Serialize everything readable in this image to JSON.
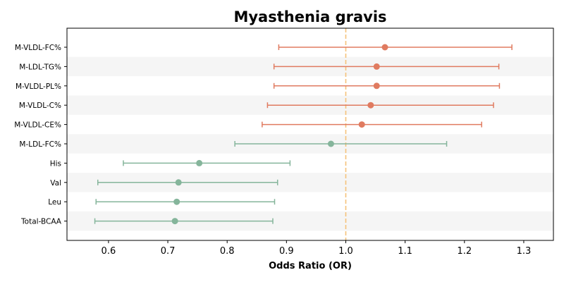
{
  "chart_data": {
    "type": "forest",
    "title": "Myasthenia gravis",
    "xlabel": "Odds Ratio (OR)",
    "ylabel": "",
    "xlim": [
      0.53,
      1.35
    ],
    "xticks": [
      "0.6",
      "0.7",
      "0.8",
      "0.9",
      "1.0",
      "1.1",
      "1.2",
      "1.3"
    ],
    "reference_line": 1.0,
    "reference_color": "#f5c27a",
    "stripe_color": "#f5f5f5",
    "categories": [
      "M-VLDL-FC%",
      "M-LDL-TG%",
      "M-VLDL-PL%",
      "M-VLDL-C%",
      "M-VLDL-CE%",
      "M-LDL-FC%",
      "His",
      "Val",
      "Leu",
      "Total-BCAA"
    ],
    "points": [
      {
        "label": "M-VLDL-FC%",
        "or": 1.066,
        "ci_low": 0.887,
        "ci_high": 1.28,
        "color": "#e07b60"
      },
      {
        "label": "M-LDL-TG%",
        "or": 1.052,
        "ci_low": 0.879,
        "ci_high": 1.258,
        "color": "#e07b60"
      },
      {
        "label": "M-VLDL-PL%",
        "or": 1.052,
        "ci_low": 0.879,
        "ci_high": 1.259,
        "color": "#e07b60"
      },
      {
        "label": "M-VLDL-C%",
        "or": 1.042,
        "ci_low": 0.868,
        "ci_high": 1.249,
        "color": "#e07b60"
      },
      {
        "label": "M-VLDL-CE%",
        "or": 1.027,
        "ci_low": 0.859,
        "ci_high": 1.229,
        "color": "#e07b60"
      },
      {
        "label": "M-LDL-FC%",
        "or": 0.975,
        "ci_low": 0.813,
        "ci_high": 1.17,
        "color": "#85b59b"
      },
      {
        "label": "His",
        "or": 0.753,
        "ci_low": 0.625,
        "ci_high": 0.906,
        "color": "#85b59b"
      },
      {
        "label": "Val",
        "or": 0.718,
        "ci_low": 0.582,
        "ci_high": 0.885,
        "color": "#85b59b"
      },
      {
        "label": "Leu",
        "or": 0.715,
        "ci_low": 0.579,
        "ci_high": 0.88,
        "color": "#85b59b"
      },
      {
        "label": "Total-BCAA",
        "or": 0.712,
        "ci_low": 0.577,
        "ci_high": 0.877,
        "color": "#85b59b"
      }
    ]
  }
}
